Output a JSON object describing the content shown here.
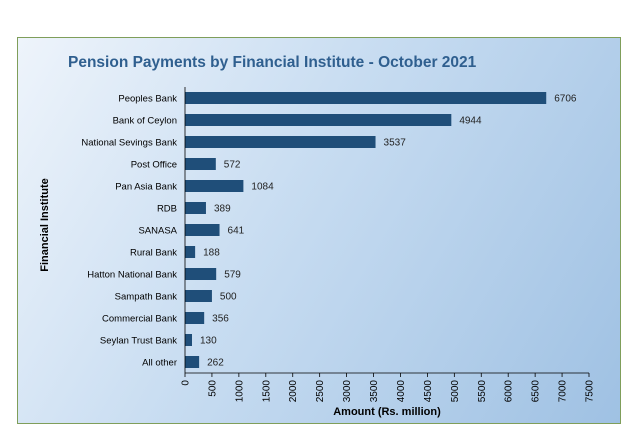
{
  "chart_data": {
    "type": "bar",
    "orientation": "horizontal",
    "title": "Pension Payments by Financial  Institute - October 2021",
    "xlabel": "Amount (Rs. million)",
    "ylabel": "Financial  Institute",
    "categories": [
      "Peoples Bank",
      "Bank of Ceylon",
      "National Sevings Bank",
      "Post Office",
      "Pan Asia Bank",
      "RDB",
      "SANASA",
      "Rural Bank",
      "Hatton National Bank",
      "Sampath Bank",
      "Commercial Bank",
      "Seylan Trust Bank",
      "All other"
    ],
    "values": [
      6706,
      4944,
      3537,
      572,
      1084,
      389,
      641,
      188,
      579,
      500,
      356,
      130,
      262
    ],
    "xlim": [
      0,
      7500
    ],
    "xticks": [
      "0",
      "500",
      "1000",
      "1500",
      "2000",
      "2500",
      "3000",
      "3500",
      "4000",
      "4500",
      "5000",
      "5500",
      "6000",
      "6500",
      "7000",
      "7500"
    ],
    "grid": false,
    "legend": "none",
    "bar_color": "#1f4e79"
  }
}
